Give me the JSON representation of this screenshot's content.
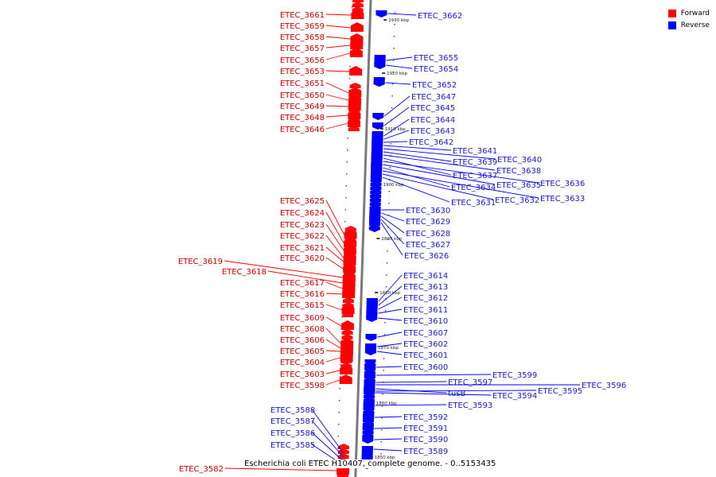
{
  "title": "Escherichia coli ETEC H10407, complete genome. - 0..5153435",
  "legend": [
    {
      "label": "Forward",
      "color": "#ff0000"
    },
    {
      "label": "Reverse",
      "color": "#0000ff"
    }
  ],
  "colors": {
    "forward": "#ff0000",
    "reverse": "#0000ff",
    "backbone": "#7a7a7a"
  },
  "scale_ticks": [
    "1930 kbp",
    "1920 kbp",
    "1910 kbp",
    "1900 kbp",
    "1890 kbp",
    "1880 kbp",
    "1870 kbp",
    "1860 kbp",
    "1850 kbp"
  ],
  "forward_genes": [
    "ETEC_3661",
    "ETEC_3659",
    "ETEC_3658",
    "ETEC_3657",
    "ETEC_3656",
    "ETEC_3653",
    "ETEC_3651",
    "ETEC_3650",
    "ETEC_3649",
    "ETEC_3648",
    "ETEC_3646",
    "ETEC_3625",
    "ETEC_3624",
    "ETEC_3623",
    "ETEC_3622",
    "ETEC_3621",
    "ETEC_3620",
    "ETEC_3619",
    "ETEC_3618",
    "ETEC_3617",
    "ETEC_3616",
    "ETEC_3615",
    "ETEC_3609",
    "ETEC_3608",
    "ETEC_3606",
    "ETEC_3605",
    "ETEC_3604",
    "ETEC_3603",
    "ETEC_3598",
    "ETEC_3582"
  ],
  "reverse_genes": [
    "ETEC_3662",
    "ETEC_3655",
    "ETEC_3654",
    "ETEC_3652",
    "ETEC_3647",
    "ETEC_3645",
    "ETEC_3644",
    "ETEC_3643",
    "ETEC_3642",
    "ETEC_3641",
    "ETEC_3640",
    "ETEC_3639",
    "ETEC_3638",
    "ETEC_3637",
    "ETEC_3636",
    "ETEC_3635",
    "ETEC_3634",
    "ETEC_3633",
    "ETEC_3632",
    "ETEC_3631",
    "ETEC_3630",
    "ETEC_3629",
    "ETEC_3628",
    "ETEC_3627",
    "ETEC_3626",
    "ETEC_3614",
    "ETEC_3613",
    "ETEC_3612",
    "ETEC_3611",
    "ETEC_3610",
    "ETEC_3607",
    "ETEC_3602",
    "ETEC_3601",
    "ETEC_3600",
    "ETEC_3599",
    "ETEC_3597",
    "ETEC_3596",
    "tusB",
    "ETEC_3595",
    "ETEC_3594",
    "ETEC_3593",
    "ETEC_3592",
    "ETEC_3591",
    "ETEC_3590",
    "ETEC_3589",
    "ETEC_3588",
    "ETEC_3587",
    "ETEC_3586",
    "ETEC_3585"
  ]
}
